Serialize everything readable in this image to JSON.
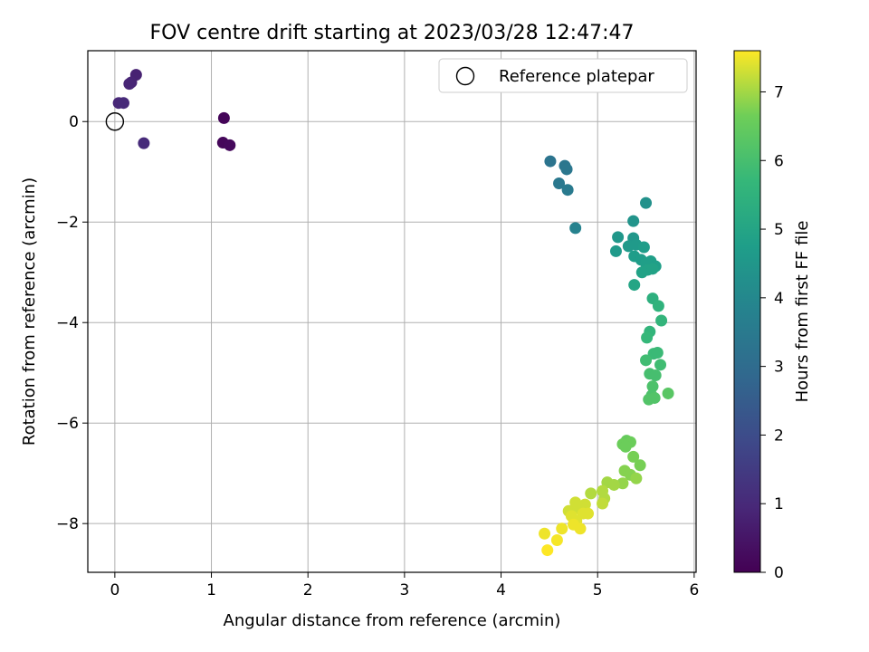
{
  "chart_data": {
    "type": "scatter",
    "title": "FOV centre drift starting at 2023/03/28 12:47:47",
    "xlabel": "Angular distance from reference (arcmin)",
    "ylabel": "Rotation from reference (arcmin)",
    "xlim": [
      -0.28,
      6.02
    ],
    "ylim": [
      -8.97,
      1.41
    ],
    "xticks": [
      0,
      1,
      2,
      3,
      4,
      5,
      6
    ],
    "yticks": [
      0,
      -2,
      -4,
      -6,
      -8
    ],
    "grid": true,
    "legend": {
      "placement": "top-right",
      "entries": [
        "Reference platepar"
      ]
    },
    "reference_point": {
      "x": 0,
      "y": 0
    },
    "colorbar": {
      "label": "Hours from first FF file",
      "min": 0,
      "max": 7.6,
      "ticks": [
        0,
        1,
        2,
        3,
        4,
        5,
        6,
        7
      ],
      "colormap": "viridis"
    },
    "points": [
      {
        "x": 1.13,
        "y": 0.07,
        "c": 0.1
      },
      {
        "x": 1.12,
        "y": -0.42,
        "c": 0.15
      },
      {
        "x": 1.19,
        "y": -0.47,
        "c": 0.2
      },
      {
        "x": 0.22,
        "y": 0.93,
        "c": 0.8
      },
      {
        "x": 0.17,
        "y": 0.78,
        "c": 0.85
      },
      {
        "x": 0.15,
        "y": 0.75,
        "c": 0.9
      },
      {
        "x": 0.04,
        "y": 0.37,
        "c": 0.95
      },
      {
        "x": 0.09,
        "y": 0.37,
        "c": 1.0
      },
      {
        "x": 0.3,
        "y": -0.43,
        "c": 1.05
      },
      {
        "x": 4.51,
        "y": -0.79,
        "c": 3.3
      },
      {
        "x": 4.66,
        "y": -0.88,
        "c": 3.35
      },
      {
        "x": 4.68,
        "y": -0.95,
        "c": 3.4
      },
      {
        "x": 4.6,
        "y": -1.23,
        "c": 3.45
      },
      {
        "x": 4.69,
        "y": -1.36,
        "c": 3.5
      },
      {
        "x": 4.77,
        "y": -2.12,
        "c": 3.8
      },
      {
        "x": 5.5,
        "y": -1.62,
        "c": 4.3
      },
      {
        "x": 5.37,
        "y": -1.98,
        "c": 4.4
      },
      {
        "x": 5.21,
        "y": -2.3,
        "c": 4.5
      },
      {
        "x": 5.37,
        "y": -2.32,
        "c": 4.5
      },
      {
        "x": 5.19,
        "y": -2.58,
        "c": 4.6
      },
      {
        "x": 5.32,
        "y": -2.48,
        "c": 4.6
      },
      {
        "x": 5.4,
        "y": -2.45,
        "c": 4.6
      },
      {
        "x": 5.48,
        "y": -2.5,
        "c": 4.7
      },
      {
        "x": 5.38,
        "y": -2.68,
        "c": 4.7
      },
      {
        "x": 5.45,
        "y": -2.75,
        "c": 4.7
      },
      {
        "x": 5.5,
        "y": -2.82,
        "c": 4.8
      },
      {
        "x": 5.55,
        "y": -2.78,
        "c": 4.8
      },
      {
        "x": 5.6,
        "y": -2.88,
        "c": 4.8
      },
      {
        "x": 5.57,
        "y": -2.93,
        "c": 4.9
      },
      {
        "x": 5.52,
        "y": -2.95,
        "c": 4.9
      },
      {
        "x": 5.46,
        "y": -3.0,
        "c": 4.9
      },
      {
        "x": 5.38,
        "y": -3.25,
        "c": 5.0
      },
      {
        "x": 5.57,
        "y": -3.52,
        "c": 5.4
      },
      {
        "x": 5.63,
        "y": -3.67,
        "c": 5.5
      },
      {
        "x": 5.66,
        "y": -3.96,
        "c": 5.6
      },
      {
        "x": 5.54,
        "y": -4.18,
        "c": 5.6
      },
      {
        "x": 5.51,
        "y": -4.3,
        "c": 5.7
      },
      {
        "x": 5.58,
        "y": -4.62,
        "c": 5.8
      },
      {
        "x": 5.62,
        "y": -4.6,
        "c": 5.8
      },
      {
        "x": 5.5,
        "y": -4.75,
        "c": 5.9
      },
      {
        "x": 5.65,
        "y": -4.84,
        "c": 5.9
      },
      {
        "x": 5.54,
        "y": -5.02,
        "c": 6.0
      },
      {
        "x": 5.6,
        "y": -5.05,
        "c": 6.0
      },
      {
        "x": 5.57,
        "y": -5.27,
        "c": 6.1
      },
      {
        "x": 5.56,
        "y": -5.45,
        "c": 6.1
      },
      {
        "x": 5.53,
        "y": -5.53,
        "c": 6.2
      },
      {
        "x": 5.59,
        "y": -5.5,
        "c": 6.2
      },
      {
        "x": 5.73,
        "y": -5.41,
        "c": 6.3
      },
      {
        "x": 5.3,
        "y": -6.35,
        "c": 6.5
      },
      {
        "x": 5.26,
        "y": -6.42,
        "c": 6.6
      },
      {
        "x": 5.34,
        "y": -6.38,
        "c": 6.6
      },
      {
        "x": 5.29,
        "y": -6.47,
        "c": 6.6
      },
      {
        "x": 5.37,
        "y": -6.67,
        "c": 6.7
      },
      {
        "x": 5.44,
        "y": -6.84,
        "c": 6.7
      },
      {
        "x": 5.28,
        "y": -6.95,
        "c": 6.8
      },
      {
        "x": 5.34,
        "y": -7.03,
        "c": 6.8
      },
      {
        "x": 5.4,
        "y": -7.1,
        "c": 6.9
      },
      {
        "x": 5.26,
        "y": -7.2,
        "c": 6.9
      },
      {
        "x": 5.1,
        "y": -7.18,
        "c": 7.0
      },
      {
        "x": 5.17,
        "y": -7.23,
        "c": 7.0
      },
      {
        "x": 4.93,
        "y": -7.4,
        "c": 7.1
      },
      {
        "x": 5.05,
        "y": -7.35,
        "c": 7.1
      },
      {
        "x": 5.07,
        "y": -7.5,
        "c": 7.1
      },
      {
        "x": 5.05,
        "y": -7.6,
        "c": 7.2
      },
      {
        "x": 4.87,
        "y": -7.62,
        "c": 7.3
      },
      {
        "x": 4.77,
        "y": -7.58,
        "c": 7.3
      },
      {
        "x": 4.7,
        "y": -7.75,
        "c": 7.3
      },
      {
        "x": 4.8,
        "y": -7.7,
        "c": 7.3
      },
      {
        "x": 4.85,
        "y": -7.8,
        "c": 7.4
      },
      {
        "x": 4.9,
        "y": -7.8,
        "c": 7.4
      },
      {
        "x": 4.73,
        "y": -7.85,
        "c": 7.4
      },
      {
        "x": 4.78,
        "y": -7.95,
        "c": 7.4
      },
      {
        "x": 4.75,
        "y": -8.02,
        "c": 7.5
      },
      {
        "x": 4.82,
        "y": -8.1,
        "c": 7.5
      },
      {
        "x": 4.63,
        "y": -8.1,
        "c": 7.5
      },
      {
        "x": 4.45,
        "y": -8.2,
        "c": 7.5
      },
      {
        "x": 4.58,
        "y": -8.33,
        "c": 7.55
      },
      {
        "x": 4.48,
        "y": -8.53,
        "c": 7.6
      }
    ]
  }
}
